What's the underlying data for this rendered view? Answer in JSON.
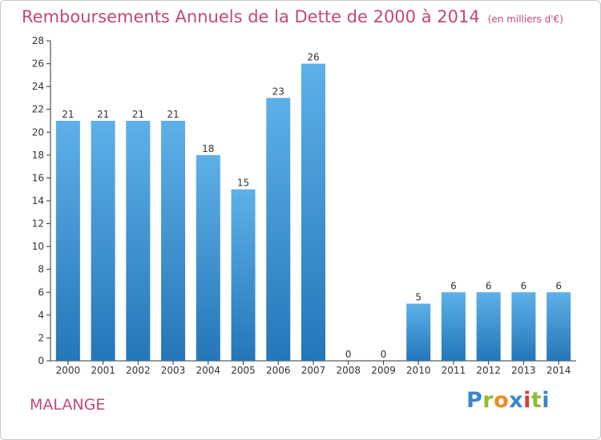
{
  "chart_data": {
    "type": "bar",
    "title": "Remboursements Annuels de la Dette de 2000 à 2014",
    "unit_note": "(en milliers d'€)",
    "categories": [
      "2000",
      "2001",
      "2002",
      "2003",
      "2004",
      "2005",
      "2006",
      "2007",
      "2008",
      "2009",
      "2010",
      "2011",
      "2012",
      "2013",
      "2014"
    ],
    "values": [
      21,
      21,
      21,
      21,
      18,
      15,
      23,
      26,
      0,
      0,
      5,
      6,
      6,
      6,
      6
    ],
    "ylim": [
      0,
      28
    ],
    "yticks": [
      0,
      2,
      4,
      6,
      8,
      10,
      12,
      14,
      16,
      18,
      20,
      22,
      24,
      26,
      28
    ],
    "xlabel": "",
    "ylabel": "",
    "grid": false,
    "bar_color_top": "#5eb0e8",
    "bar_color_bottom": "#2576b8"
  },
  "commune": "MALANGE",
  "logo": "Proxiti",
  "colors": {
    "title": "#c0487c",
    "axis": "#333333"
  }
}
